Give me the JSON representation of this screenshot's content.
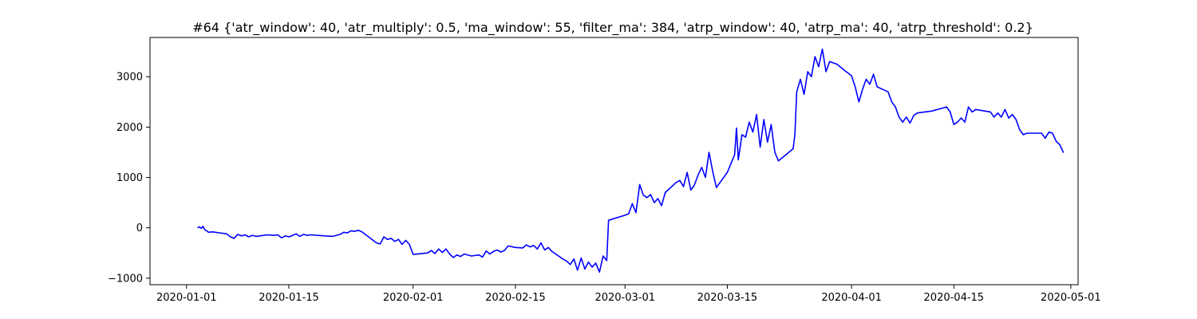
{
  "chart_data": {
    "type": "line",
    "title": "#64 {'atr_window': 40, 'atr_multiply': 0.5, 'ma_window': 55, 'filter_ma': 384, 'atrp_window': 40, 'atrp_ma': 40, 'atrp_threshold': 0.2}",
    "xlabel": "",
    "ylabel": "",
    "x_type": "date",
    "xlim": [
      "2019-12-27",
      "2020-05-02"
    ],
    "ylim": [
      -1130,
      3780
    ],
    "xticks": [
      "2020-01-01",
      "2020-01-15",
      "2020-02-01",
      "2020-02-15",
      "2020-03-01",
      "2020-03-15",
      "2020-04-01",
      "2020-04-15",
      "2020-05-01"
    ],
    "yticks": [
      -1000,
      0,
      1000,
      2000,
      3000
    ],
    "ytick_labels": [
      "−1000",
      "0",
      "1000",
      "2000",
      "3000"
    ],
    "grid": false,
    "legend": "none",
    "series": [
      {
        "color": "#0000ff",
        "points": [
          [
            "2020-01-02T12:00",
            0
          ],
          [
            "2020-01-02T18:00",
            20
          ],
          [
            "2020-01-03T00:00",
            -10
          ],
          [
            "2020-01-03T06:00",
            30
          ],
          [
            "2020-01-03T12:00",
            -40
          ],
          [
            "2020-01-03T18:00",
            -60
          ],
          [
            "2020-01-04T00:00",
            -90
          ],
          [
            "2020-01-04T12:00",
            -80
          ],
          [
            "2020-01-05T12:00",
            -100
          ],
          [
            "2020-01-06T12:00",
            -120
          ],
          [
            "2020-01-07T00:00",
            -180
          ],
          [
            "2020-01-07T12:00",
            -210
          ],
          [
            "2020-01-08T00:00",
            -130
          ],
          [
            "2020-01-08T12:00",
            -160
          ],
          [
            "2020-01-09T00:00",
            -140
          ],
          [
            "2020-01-09T12:00",
            -180
          ],
          [
            "2020-01-10T00:00",
            -150
          ],
          [
            "2020-01-10T12:00",
            -170
          ],
          [
            "2020-01-11T00:00",
            -160
          ],
          [
            "2020-01-12T00:00",
            -140
          ],
          [
            "2020-01-13T00:00",
            -150
          ],
          [
            "2020-01-13T12:00",
            -140
          ],
          [
            "2020-01-14T00:00",
            -200
          ],
          [
            "2020-01-14T12:00",
            -160
          ],
          [
            "2020-01-15T00:00",
            -180
          ],
          [
            "2020-01-15T12:00",
            -150
          ],
          [
            "2020-01-16T00:00",
            -120
          ],
          [
            "2020-01-16T12:00",
            -170
          ],
          [
            "2020-01-17T00:00",
            -130
          ],
          [
            "2020-01-17T12:00",
            -150
          ],
          [
            "2020-01-18T00:00",
            -140
          ],
          [
            "2020-01-20T00:00",
            -160
          ],
          [
            "2020-01-21T00:00",
            -170
          ],
          [
            "2020-01-22T00:00",
            -130
          ],
          [
            "2020-01-22T12:00",
            -90
          ],
          [
            "2020-01-23T00:00",
            -100
          ],
          [
            "2020-01-23T12:00",
            -60
          ],
          [
            "2020-01-24T00:00",
            -70
          ],
          [
            "2020-01-24T12:00",
            -50
          ],
          [
            "2020-01-25T00:00",
            -80
          ],
          [
            "2020-01-27T00:00",
            -300
          ],
          [
            "2020-01-27T12:00",
            -320
          ],
          [
            "2020-01-28T00:00",
            -180
          ],
          [
            "2020-01-28T12:00",
            -230
          ],
          [
            "2020-01-29T00:00",
            -210
          ],
          [
            "2020-01-29T12:00",
            -270
          ],
          [
            "2020-01-30T00:00",
            -230
          ],
          [
            "2020-01-30T12:00",
            -330
          ],
          [
            "2020-01-31T00:00",
            -250
          ],
          [
            "2020-01-31T12:00",
            -330
          ],
          [
            "2020-02-01T00:00",
            -530
          ],
          [
            "2020-02-03T00:00",
            -500
          ],
          [
            "2020-02-03T12:00",
            -450
          ],
          [
            "2020-02-04T00:00",
            -510
          ],
          [
            "2020-02-04T12:00",
            -420
          ],
          [
            "2020-02-05T00:00",
            -490
          ],
          [
            "2020-02-05T12:00",
            -420
          ],
          [
            "2020-02-06T00:00",
            -520
          ],
          [
            "2020-02-06T12:00",
            -590
          ],
          [
            "2020-02-07T00:00",
            -540
          ],
          [
            "2020-02-07T12:00",
            -570
          ],
          [
            "2020-02-08T00:00",
            -520
          ],
          [
            "2020-02-09T00:00",
            -560
          ],
          [
            "2020-02-10T00:00",
            -540
          ],
          [
            "2020-02-10T12:00",
            -580
          ],
          [
            "2020-02-11T00:00",
            -460
          ],
          [
            "2020-02-11T12:00",
            -520
          ],
          [
            "2020-02-12T00:00",
            -470
          ],
          [
            "2020-02-12T12:00",
            -440
          ],
          [
            "2020-02-13T00:00",
            -480
          ],
          [
            "2020-02-13T12:00",
            -450
          ],
          [
            "2020-02-14T00:00",
            -360
          ],
          [
            "2020-02-15T00:00",
            -390
          ],
          [
            "2020-02-16T00:00",
            -400
          ],
          [
            "2020-02-16T12:00",
            -340
          ],
          [
            "2020-02-17T00:00",
            -380
          ],
          [
            "2020-02-17T12:00",
            -350
          ],
          [
            "2020-02-18T00:00",
            -420
          ],
          [
            "2020-02-18T12:00",
            -300
          ],
          [
            "2020-02-19T00:00",
            -440
          ],
          [
            "2020-02-19T12:00",
            -390
          ],
          [
            "2020-02-20T00:00",
            -470
          ],
          [
            "2020-02-21T00:00",
            -570
          ],
          [
            "2020-02-21T12:00",
            -620
          ],
          [
            "2020-02-22T00:00",
            -660
          ],
          [
            "2020-02-22T12:00",
            -730
          ],
          [
            "2020-02-23T00:00",
            -620
          ],
          [
            "2020-02-23T12:00",
            -840
          ],
          [
            "2020-02-24T00:00",
            -600
          ],
          [
            "2020-02-24T12:00",
            -820
          ],
          [
            "2020-02-25T00:00",
            -680
          ],
          [
            "2020-02-25T12:00",
            -780
          ],
          [
            "2020-02-26T00:00",
            -700
          ],
          [
            "2020-02-26T12:00",
            -880
          ],
          [
            "2020-02-27T00:00",
            -560
          ],
          [
            "2020-02-27T12:00",
            -650
          ],
          [
            "2020-02-27T18:00",
            150
          ],
          [
            "2020-03-01T00:00",
            250
          ],
          [
            "2020-03-01T12:00",
            280
          ],
          [
            "2020-03-02T00:00",
            480
          ],
          [
            "2020-03-02T12:00",
            300
          ],
          [
            "2020-03-03T00:00",
            860
          ],
          [
            "2020-03-03T12:00",
            650
          ],
          [
            "2020-03-04T00:00",
            600
          ],
          [
            "2020-03-04T12:00",
            660
          ],
          [
            "2020-03-05T00:00",
            500
          ],
          [
            "2020-03-05T12:00",
            580
          ],
          [
            "2020-03-06T00:00",
            440
          ],
          [
            "2020-03-06T12:00",
            700
          ],
          [
            "2020-03-08T00:00",
            900
          ],
          [
            "2020-03-08T12:00",
            940
          ],
          [
            "2020-03-09T00:00",
            820
          ],
          [
            "2020-03-09T12:00",
            1100
          ],
          [
            "2020-03-10T00:00",
            750
          ],
          [
            "2020-03-10T12:00",
            850
          ],
          [
            "2020-03-11T00:00",
            1050
          ],
          [
            "2020-03-11T12:00",
            1200
          ],
          [
            "2020-03-12T00:00",
            1000
          ],
          [
            "2020-03-12T12:00",
            1500
          ],
          [
            "2020-03-13T00:00",
            1120
          ],
          [
            "2020-03-13T12:00",
            800
          ],
          [
            "2020-03-14T00:00",
            900
          ],
          [
            "2020-03-15T00:00",
            1100
          ],
          [
            "2020-03-16T00:00",
            1450
          ],
          [
            "2020-03-16T06:00",
            1980
          ],
          [
            "2020-03-16T12:00",
            1350
          ],
          [
            "2020-03-17T00:00",
            1850
          ],
          [
            "2020-03-17T12:00",
            1800
          ],
          [
            "2020-03-18T00:00",
            2100
          ],
          [
            "2020-03-18T12:00",
            1900
          ],
          [
            "2020-03-19T00:00",
            2250
          ],
          [
            "2020-03-19T12:00",
            1600
          ],
          [
            "2020-03-20T00:00",
            2150
          ],
          [
            "2020-03-20T12:00",
            1700
          ],
          [
            "2020-03-21T00:00",
            2050
          ],
          [
            "2020-03-21T12:00",
            1500
          ],
          [
            "2020-03-22T00:00",
            1330
          ],
          [
            "2020-03-24T00:00",
            1570
          ],
          [
            "2020-03-24T06:00",
            1850
          ],
          [
            "2020-03-24T12:00",
            2700
          ],
          [
            "2020-03-25T00:00",
            2950
          ],
          [
            "2020-03-25T12:00",
            2650
          ],
          [
            "2020-03-26T00:00",
            3100
          ],
          [
            "2020-03-26T12:00",
            3000
          ],
          [
            "2020-03-27T00:00",
            3400
          ],
          [
            "2020-03-27T12:00",
            3200
          ],
          [
            "2020-03-28T00:00",
            3550
          ],
          [
            "2020-03-28T12:00",
            3100
          ],
          [
            "2020-03-29T00:00",
            3300
          ],
          [
            "2020-03-30T00:00",
            3250
          ],
          [
            "2020-03-31T00:00",
            3130
          ],
          [
            "2020-04-01T00:00",
            3020
          ],
          [
            "2020-04-01T12:00",
            2800
          ],
          [
            "2020-04-02T00:00",
            2500
          ],
          [
            "2020-04-02T12:00",
            2750
          ],
          [
            "2020-04-03T00:00",
            2950
          ],
          [
            "2020-04-03T12:00",
            2850
          ],
          [
            "2020-04-04T00:00",
            3050
          ],
          [
            "2020-04-04T12:00",
            2800
          ],
          [
            "2020-04-06T00:00",
            2700
          ],
          [
            "2020-04-06T12:00",
            2500
          ],
          [
            "2020-04-07T00:00",
            2400
          ],
          [
            "2020-04-07T12:00",
            2200
          ],
          [
            "2020-04-08T00:00",
            2100
          ],
          [
            "2020-04-08T12:00",
            2200
          ],
          [
            "2020-04-09T00:00",
            2080
          ],
          [
            "2020-04-09T12:00",
            2230
          ],
          [
            "2020-04-10T00:00",
            2280
          ],
          [
            "2020-04-12T00:00",
            2320
          ],
          [
            "2020-04-14T00:00",
            2400
          ],
          [
            "2020-04-14T12:00",
            2300
          ],
          [
            "2020-04-15T00:00",
            2050
          ],
          [
            "2020-04-15T12:00",
            2100
          ],
          [
            "2020-04-16T00:00",
            2180
          ],
          [
            "2020-04-16T12:00",
            2100
          ],
          [
            "2020-04-17T00:00",
            2400
          ],
          [
            "2020-04-17T12:00",
            2300
          ],
          [
            "2020-04-18T00:00",
            2350
          ],
          [
            "2020-04-20T00:00",
            2300
          ],
          [
            "2020-04-20T12:00",
            2200
          ],
          [
            "2020-04-21T00:00",
            2280
          ],
          [
            "2020-04-21T12:00",
            2200
          ],
          [
            "2020-04-22T00:00",
            2350
          ],
          [
            "2020-04-22T12:00",
            2180
          ],
          [
            "2020-04-23T00:00",
            2250
          ],
          [
            "2020-04-23T12:00",
            2150
          ],
          [
            "2020-04-24T00:00",
            1950
          ],
          [
            "2020-04-24T12:00",
            1850
          ],
          [
            "2020-04-25T00:00",
            1880
          ],
          [
            "2020-04-27T00:00",
            1880
          ],
          [
            "2020-04-27T12:00",
            1780
          ],
          [
            "2020-04-28T00:00",
            1900
          ],
          [
            "2020-04-28T12:00",
            1880
          ],
          [
            "2020-04-29T00:00",
            1720
          ],
          [
            "2020-04-29T12:00",
            1650
          ],
          [
            "2020-04-30T00:00",
            1490
          ]
        ]
      }
    ]
  }
}
